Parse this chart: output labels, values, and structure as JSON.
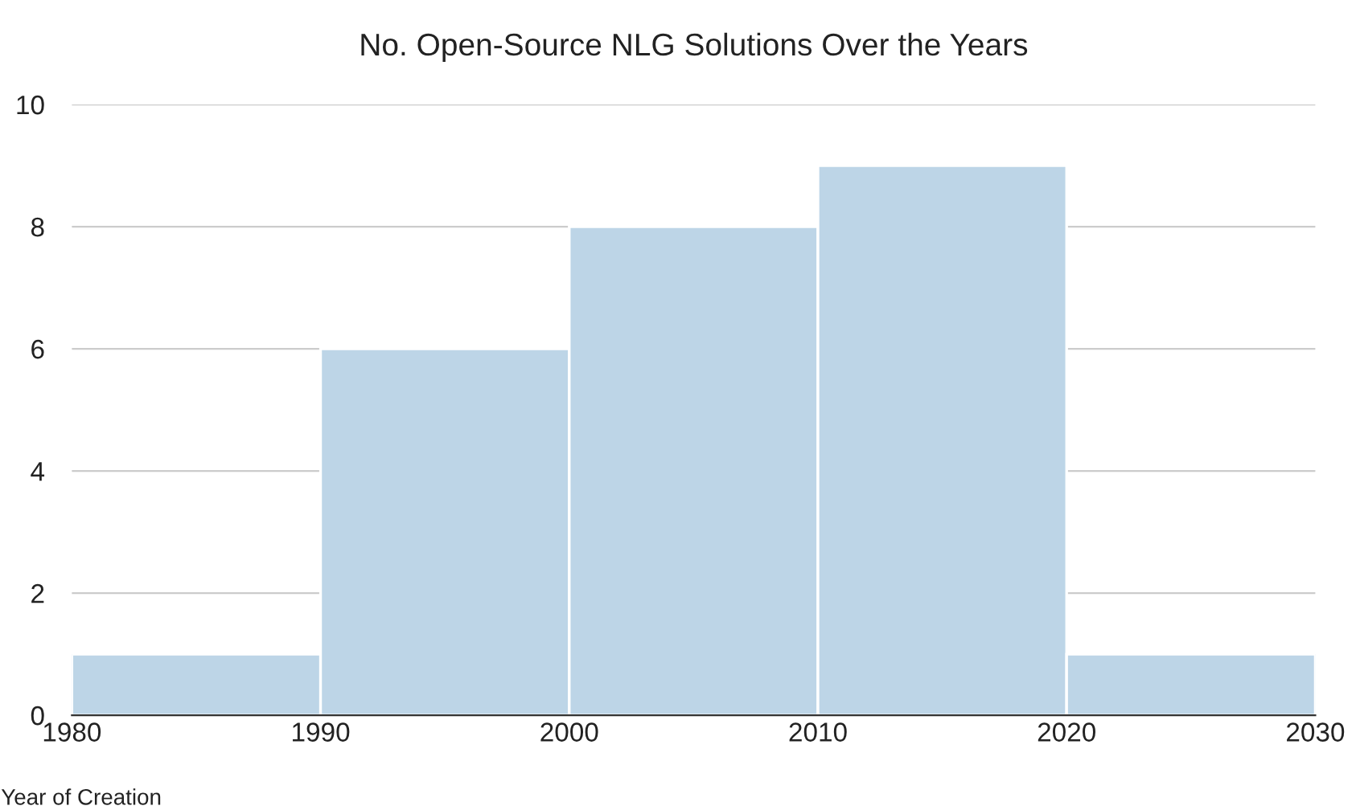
{
  "chart_data": {
    "type": "histogram",
    "title": "No. Open-Source NLG Solutions Over the Years",
    "xlabel": "Year of Creation",
    "bins": [
      1980,
      1990,
      2000,
      2010,
      2020,
      2030
    ],
    "values": [
      1,
      6,
      8,
      9,
      1
    ],
    "color": "#bdd5e7",
    "xlim": [
      1980,
      2030
    ],
    "xticks": [
      1980,
      1990,
      2000,
      2010,
      2020,
      2030
    ],
    "ylim": [
      0,
      10
    ],
    "yticks": [
      0,
      2,
      4,
      6,
      8,
      10
    ],
    "grid": "y"
  }
}
